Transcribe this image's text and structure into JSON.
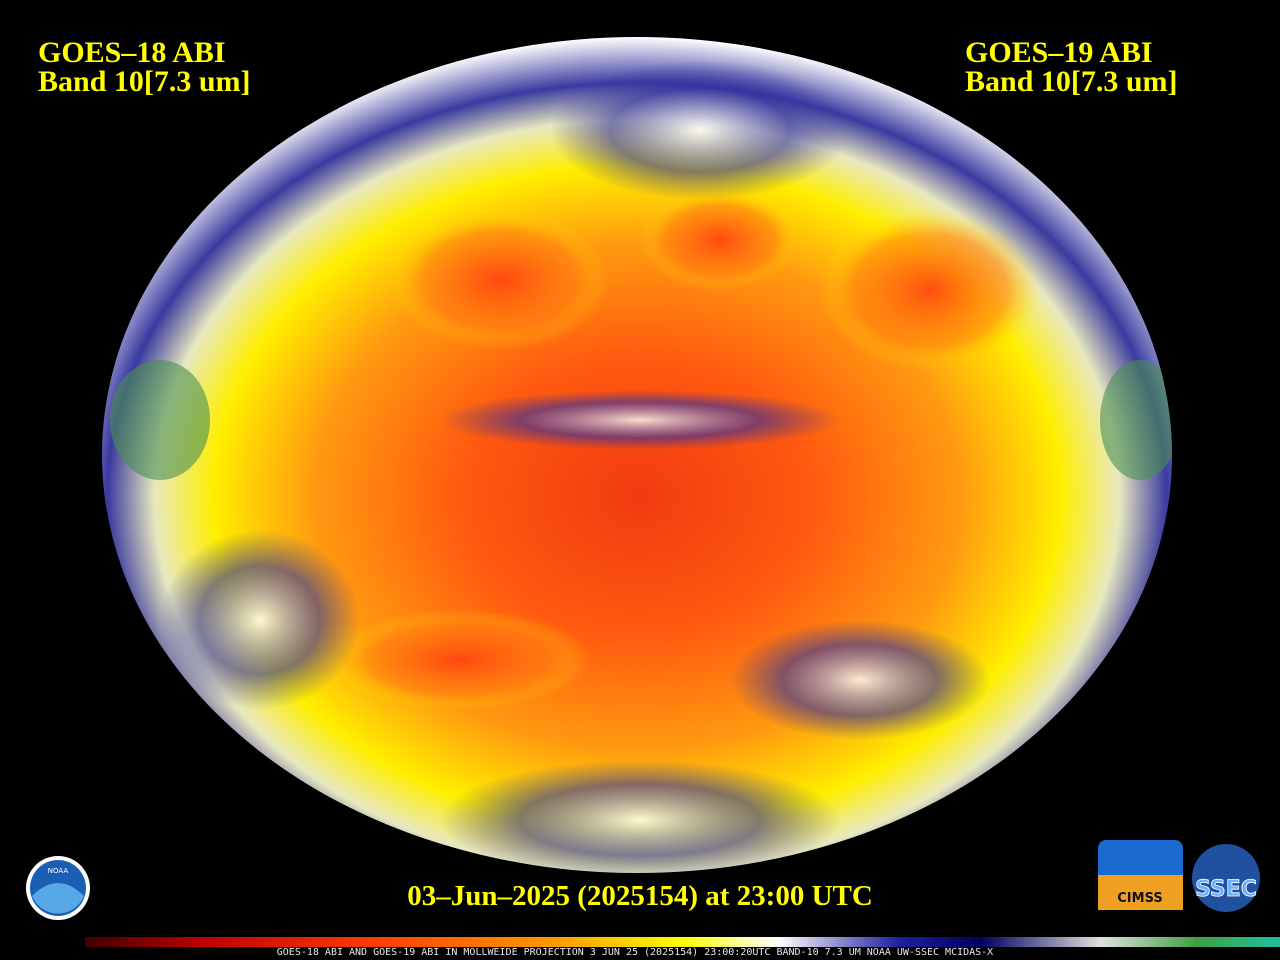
{
  "header": {
    "left": {
      "satellite": "GOES–18 ABI",
      "band": "Band 10[7.3 um]"
    },
    "right": {
      "satellite": "GOES–19 ABI",
      "band": "Band 10[7.3 um]"
    }
  },
  "timestamp": "03–Jun–2025 (2025154) at 23:00 UTC",
  "logos": {
    "noaa": "NOAA",
    "cimss": "CIMSS",
    "ssec": "SSEC"
  },
  "colorbar_caption": "GOES-18 ABI AND GOES-19 ABI IN MOLLWEIDE PROJECTION 3 JUN 25 (2025154) 23:00:20UTC BAND-10 7.3 UM NOAA UW-SSEC MCIDAS-X"
}
